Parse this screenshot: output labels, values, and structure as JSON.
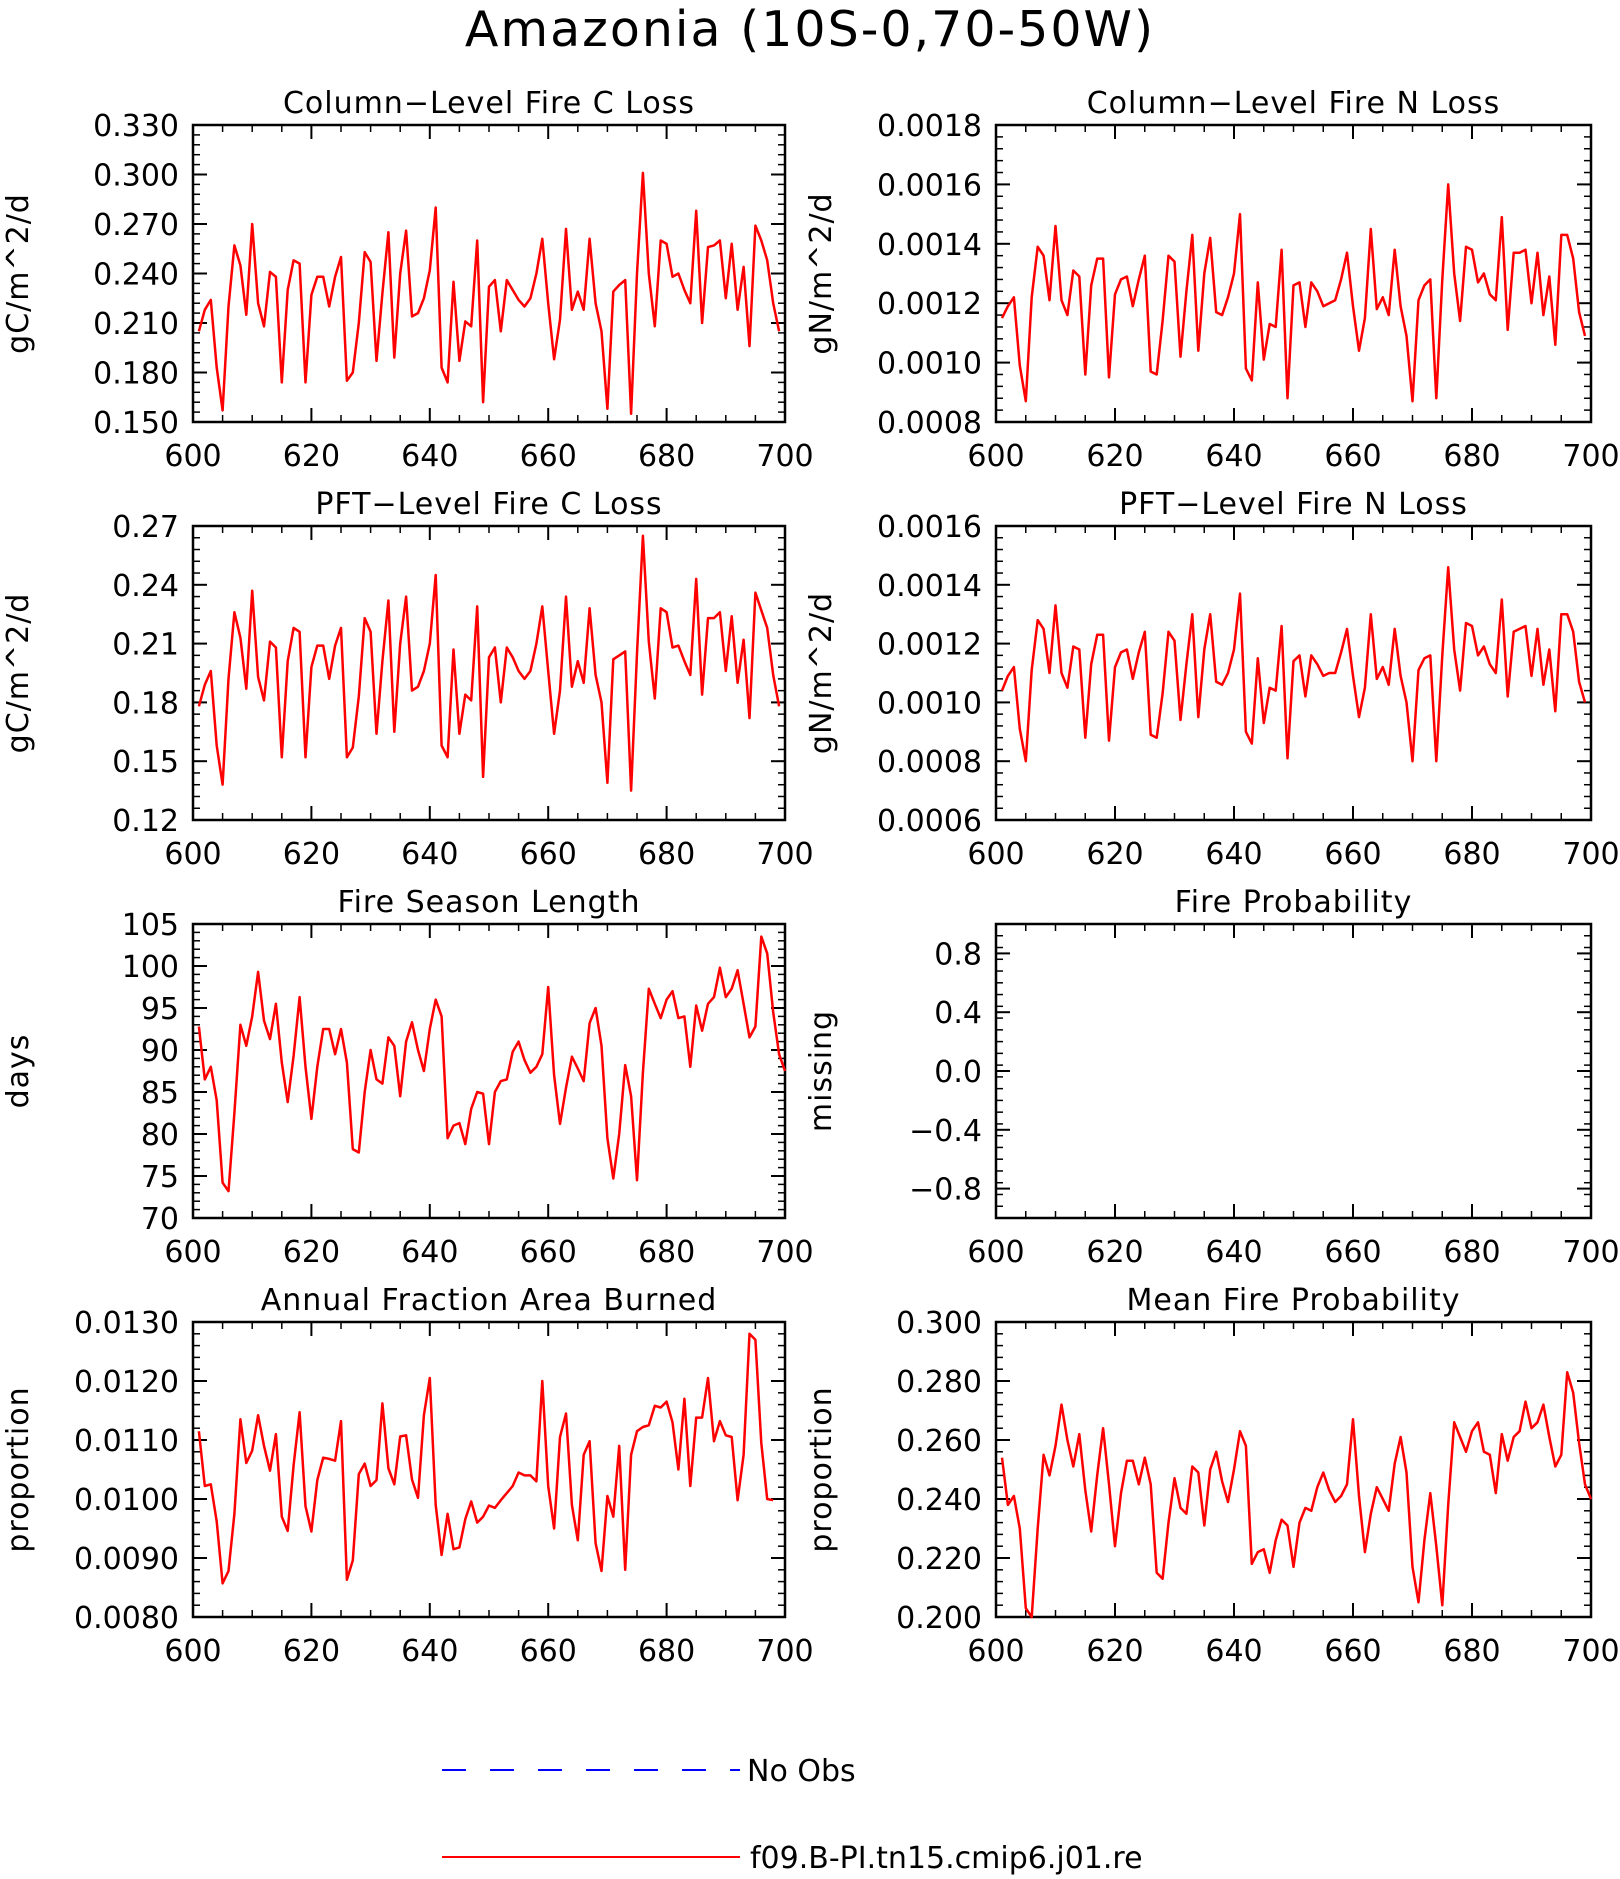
{
  "title": "Amazonia (10S-0,70-50W)",
  "series_color": "#ff0000",
  "obs_color": "#0000ff",
  "legend": {
    "obs_label": "No Obs",
    "model_label": "f09.B-PI.tn15.cmip6.j01.re"
  },
  "chart_data": [
    {
      "id": "col-c",
      "type": "line",
      "title": "Column-Level Fire C Loss",
      "ylabel": "gC/m^2/d",
      "xlim": [
        600,
        700
      ],
      "ylim": [
        0.15,
        0.33
      ],
      "xticks": [
        600,
        620,
        640,
        660,
        680,
        700
      ],
      "yticks": [
        0.15,
        0.18,
        0.21,
        0.24,
        0.27,
        0.3,
        0.33
      ],
      "ytick_labels": [
        "0.150",
        "0.180",
        "0.210",
        "0.240",
        "0.270",
        "0.300",
        "0.330"
      ],
      "x_start": 601,
      "series": [
        {
          "name": "f09.B-PI.tn15.cmip6.j01.re",
          "values": [
            0.205,
            0.218,
            0.224,
            0.183,
            0.157,
            0.22,
            0.257,
            0.245,
            0.215,
            0.27,
            0.222,
            0.208,
            0.241,
            0.238,
            0.174,
            0.23,
            0.248,
            0.246,
            0.174,
            0.227,
            0.238,
            0.238,
            0.22,
            0.238,
            0.25,
            0.175,
            0.18,
            0.21,
            0.253,
            0.247,
            0.187,
            0.228,
            0.265,
            0.189,
            0.24,
            0.266,
            0.214,
            0.216,
            0.225,
            0.242,
            0.28,
            0.183,
            0.174,
            0.235,
            0.187,
            0.211,
            0.208,
            0.26,
            0.162,
            0.232,
            0.236,
            0.205,
            0.236,
            0.23,
            0.224,
            0.22,
            0.225,
            0.24,
            0.261,
            0.222,
            0.188,
            0.212,
            0.267,
            0.218,
            0.229,
            0.218,
            0.261,
            0.222,
            0.205,
            0.158,
            0.229,
            0.233,
            0.236,
            0.155,
            0.24,
            0.301,
            0.24,
            0.208,
            0.26,
            0.258,
            0.238,
            0.24,
            0.23,
            0.222,
            0.278,
            0.21,
            0.256,
            0.257,
            0.26,
            0.225,
            0.258,
            0.218,
            0.244,
            0.196,
            0.269,
            0.26,
            0.248,
            0.222,
            0.205
          ]
        }
      ]
    },
    {
      "id": "col-n",
      "type": "line",
      "title": "Column-Level Fire N Loss",
      "ylabel": "gN/m^2/d",
      "xlim": [
        600,
        700
      ],
      "ylim": [
        0.0008,
        0.0018
      ],
      "xticks": [
        600,
        620,
        640,
        660,
        680,
        700
      ],
      "yticks": [
        0.0008,
        0.001,
        0.0012,
        0.0014,
        0.0016,
        0.0018
      ],
      "ytick_labels": [
        "0.0008",
        "0.0010",
        "0.0012",
        "0.0014",
        "0.0016",
        "0.0018"
      ],
      "x_start": 601,
      "series": [
        {
          "name": "f09.B-PI.tn15.cmip6.j01.re",
          "values": [
            0.00115,
            0.00119,
            0.00122,
            0.00099,
            0.00087,
            0.00122,
            0.00139,
            0.00136,
            0.00121,
            0.00146,
            0.00121,
            0.00116,
            0.00131,
            0.00129,
            0.00096,
            0.00126,
            0.00135,
            0.00135,
            0.00095,
            0.00123,
            0.00128,
            0.00129,
            0.00119,
            0.00128,
            0.00136,
            0.00097,
            0.00096,
            0.00114,
            0.00136,
            0.00134,
            0.00102,
            0.00124,
            0.00143,
            0.00104,
            0.0013,
            0.00142,
            0.00117,
            0.00116,
            0.00122,
            0.0013,
            0.0015,
            0.00098,
            0.00094,
            0.00127,
            0.00101,
            0.00113,
            0.00112,
            0.00138,
            0.00088,
            0.00126,
            0.00127,
            0.00112,
            0.00127,
            0.00124,
            0.00119,
            0.0012,
            0.00121,
            0.00128,
            0.00137,
            0.00119,
            0.00104,
            0.00115,
            0.00145,
            0.00118,
            0.00122,
            0.00116,
            0.00138,
            0.00119,
            0.00109,
            0.00087,
            0.00121,
            0.00126,
            0.00128,
            0.00088,
            0.00128,
            0.0016,
            0.0013,
            0.00114,
            0.00139,
            0.00138,
            0.00127,
            0.0013,
            0.00123,
            0.00121,
            0.00149,
            0.00111,
            0.00137,
            0.00137,
            0.00138,
            0.0012,
            0.00137,
            0.00116,
            0.00129,
            0.00106,
            0.00143,
            0.00143,
            0.00135,
            0.00117,
            0.00109
          ]
        }
      ]
    },
    {
      "id": "pft-c",
      "type": "line",
      "title": "PFT-Level Fire C Loss",
      "ylabel": "gC/m^2/d",
      "xlim": [
        600,
        700
      ],
      "ylim": [
        0.12,
        0.27
      ],
      "xticks": [
        600,
        620,
        640,
        660,
        680,
        700
      ],
      "yticks": [
        0.12,
        0.15,
        0.18,
        0.21,
        0.24,
        0.27
      ],
      "ytick_labels": [
        "0.12",
        "0.15",
        "0.18",
        "0.21",
        "0.24",
        "0.27"
      ],
      "x_start": 601,
      "series": [
        {
          "name": "f09.B-PI.tn15.cmip6.j01.re",
          "values": [
            0.178,
            0.189,
            0.196,
            0.158,
            0.138,
            0.192,
            0.226,
            0.213,
            0.187,
            0.237,
            0.193,
            0.181,
            0.211,
            0.208,
            0.152,
            0.201,
            0.218,
            0.216,
            0.152,
            0.198,
            0.209,
            0.209,
            0.192,
            0.209,
            0.218,
            0.152,
            0.157,
            0.183,
            0.223,
            0.216,
            0.164,
            0.201,
            0.232,
            0.165,
            0.21,
            0.234,
            0.186,
            0.188,
            0.196,
            0.21,
            0.245,
            0.158,
            0.152,
            0.207,
            0.164,
            0.184,
            0.181,
            0.229,
            0.142,
            0.203,
            0.208,
            0.18,
            0.208,
            0.203,
            0.196,
            0.192,
            0.196,
            0.21,
            0.229,
            0.196,
            0.164,
            0.186,
            0.234,
            0.188,
            0.201,
            0.19,
            0.228,
            0.194,
            0.18,
            0.139,
            0.202,
            0.204,
            0.206,
            0.135,
            0.205,
            0.265,
            0.211,
            0.182,
            0.228,
            0.226,
            0.208,
            0.209,
            0.201,
            0.194,
            0.243,
            0.184,
            0.223,
            0.223,
            0.226,
            0.196,
            0.224,
            0.19,
            0.212,
            0.172,
            0.236,
            0.227,
            0.218,
            0.194,
            0.178
          ]
        }
      ]
    },
    {
      "id": "pft-n",
      "type": "line",
      "title": "PFT-Level Fire N Loss",
      "ylabel": "gN/m^2/d",
      "xlim": [
        600,
        700
      ],
      "ylim": [
        0.0006,
        0.0016
      ],
      "xticks": [
        600,
        620,
        640,
        660,
        680,
        700
      ],
      "yticks": [
        0.0006,
        0.0008,
        0.001,
        0.0012,
        0.0014,
        0.0016
      ],
      "ytick_labels": [
        "0.0006",
        "0.0008",
        "0.0010",
        "0.0012",
        "0.0014",
        "0.0016"
      ],
      "x_start": 601,
      "series": [
        {
          "name": "f09.B-PI.tn15.cmip6.j01.re",
          "values": [
            0.00104,
            0.00109,
            0.00112,
            0.00091,
            0.0008,
            0.00111,
            0.00128,
            0.00125,
            0.0011,
            0.00133,
            0.0011,
            0.00105,
            0.00119,
            0.00118,
            0.00088,
            0.00113,
            0.00123,
            0.00123,
            0.00087,
            0.00112,
            0.00117,
            0.00118,
            0.00108,
            0.00117,
            0.00124,
            0.00089,
            0.00088,
            0.00103,
            0.00124,
            0.00121,
            0.00094,
            0.00113,
            0.0013,
            0.00095,
            0.00118,
            0.0013,
            0.00107,
            0.00106,
            0.0011,
            0.00118,
            0.00137,
            0.0009,
            0.00086,
            0.00115,
            0.00093,
            0.00105,
            0.00104,
            0.00126,
            0.00081,
            0.00114,
            0.00116,
            0.00102,
            0.00116,
            0.00113,
            0.00109,
            0.0011,
            0.0011,
            0.00117,
            0.00125,
            0.00109,
            0.00095,
            0.00105,
            0.0013,
            0.00108,
            0.00112,
            0.00106,
            0.00125,
            0.00109,
            0.001,
            0.0008,
            0.00111,
            0.00115,
            0.00116,
            0.0008,
            0.00116,
            0.00146,
            0.00118,
            0.00104,
            0.00127,
            0.00126,
            0.00116,
            0.00119,
            0.00113,
            0.0011,
            0.00135,
            0.00102,
            0.00124,
            0.00125,
            0.00126,
            0.00109,
            0.00125,
            0.00106,
            0.00118,
            0.00097,
            0.0013,
            0.0013,
            0.00124,
            0.00107,
            0.001
          ]
        }
      ]
    },
    {
      "id": "season",
      "type": "line",
      "title": "Fire Season Length",
      "ylabel": "days",
      "xlim": [
        600,
        700
      ],
      "ylim": [
        70,
        105
      ],
      "xticks": [
        600,
        620,
        640,
        660,
        680,
        700
      ],
      "yticks": [
        70,
        75,
        80,
        85,
        90,
        95,
        100,
        105
      ],
      "ytick_labels": [
        "70",
        "75",
        "80",
        "85",
        "90",
        "95",
        "100",
        "105"
      ],
      "x_start": 601,
      "series": [
        {
          "name": "f09.B-PI.tn15.cmip6.j01.re",
          "values": [
            92.8,
            86.5,
            88.0,
            84.0,
            74.2,
            73.2,
            82.5,
            93.0,
            90.5,
            94.0,
            99.3,
            93.5,
            91.3,
            95.5,
            88.5,
            83.8,
            89.3,
            96.3,
            88.0,
            81.8,
            88.0,
            92.5,
            92.5,
            89.5,
            92.5,
            88.5,
            78.2,
            77.8,
            85.0,
            90.0,
            86.5,
            86.0,
            91.5,
            90.5,
            84.5,
            91.0,
            93.3,
            90.0,
            87.5,
            92.5,
            96.0,
            94.0,
            79.5,
            81.0,
            81.3,
            78.8,
            83.0,
            85.0,
            84.8,
            78.8,
            85.0,
            86.3,
            86.5,
            89.8,
            91.0,
            88.8,
            87.3,
            88.0,
            89.5,
            97.5,
            87.0,
            81.2,
            85.5,
            89.2,
            87.8,
            86.3,
            93.2,
            95.0,
            90.5,
            79.5,
            74.7,
            80.0,
            88.2,
            84.5,
            74.5,
            87.3,
            97.3,
            95.5,
            93.8,
            96.0,
            97.0,
            93.8,
            94.0,
            88.0,
            95.3,
            92.3,
            95.5,
            96.3,
            99.8,
            96.3,
            97.3,
            99.5,
            95.5,
            91.5,
            92.8,
            103.5,
            101.5,
            94.5,
            89.5,
            87.5
          ]
        }
      ]
    },
    {
      "id": "prob",
      "type": "line",
      "title": "Fire Probability",
      "ylabel": "missing",
      "xlim": [
        600,
        700
      ],
      "ylim": [
        -1.0,
        1.0
      ],
      "xticks": [
        600,
        620,
        640,
        660,
        680,
        700
      ],
      "yticks": [
        -0.8,
        -0.4,
        0.0,
        0.4,
        0.8
      ],
      "ytick_labels": [
        "-0.8",
        "-0.4",
        "0.0",
        "0.4",
        "0.8"
      ],
      "x_start": 601,
      "series": []
    },
    {
      "id": "area",
      "type": "line",
      "title": "Annual Fraction Area Burned",
      "ylabel": "proportion",
      "xlim": [
        600,
        700
      ],
      "ylim": [
        0.008,
        0.013
      ],
      "xticks": [
        600,
        620,
        640,
        660,
        680,
        700
      ],
      "yticks": [
        0.008,
        0.009,
        0.01,
        0.011,
        0.012,
        0.013
      ],
      "ytick_labels": [
        "0.0080",
        "0.0090",
        "0.0100",
        "0.0110",
        "0.0120",
        "0.0130"
      ],
      "x_start": 601,
      "series": [
        {
          "name": "f09.B-PI.tn15.cmip6.j01.re",
          "values": [
            0.01115,
            0.01022,
            0.01025,
            0.00962,
            0.00857,
            0.00878,
            0.00975,
            0.01135,
            0.01061,
            0.01082,
            0.01142,
            0.0109,
            0.01048,
            0.0111,
            0.0097,
            0.00946,
            0.01057,
            0.01147,
            0.00988,
            0.00945,
            0.01032,
            0.0107,
            0.01068,
            0.01065,
            0.01132,
            0.00863,
            0.00896,
            0.01042,
            0.0106,
            0.01022,
            0.01032,
            0.01162,
            0.01052,
            0.01025,
            0.01106,
            0.01108,
            0.01033,
            0.01002,
            0.01142,
            0.01205,
            0.0099,
            0.00905,
            0.00975,
            0.00915,
            0.00918,
            0.00966,
            0.00996,
            0.0096,
            0.0097,
            0.00989,
            0.00985,
            0.00998,
            0.0101,
            0.01022,
            0.01045,
            0.0104,
            0.0104,
            0.0103,
            0.012,
            0.01022,
            0.0095,
            0.01105,
            0.01145,
            0.0099,
            0.0093,
            0.01075,
            0.01098,
            0.00925,
            0.00878,
            0.01005,
            0.0097,
            0.0109,
            0.0088,
            0.01075,
            0.01115,
            0.01122,
            0.01125,
            0.01158,
            0.01155,
            0.01165,
            0.0113,
            0.0105,
            0.0117,
            0.01022,
            0.01138,
            0.01138,
            0.01205,
            0.01098,
            0.01132,
            0.01108,
            0.01105,
            0.00998,
            0.01075,
            0.0128,
            0.0127,
            0.01095,
            0.01,
            0.00998
          ]
        }
      ]
    },
    {
      "id": "meanprob",
      "type": "line",
      "title": "Mean Fire Probability",
      "ylabel": "proportion",
      "xlim": [
        600,
        700
      ],
      "ylim": [
        0.2,
        0.3
      ],
      "xticks": [
        600,
        620,
        640,
        660,
        680,
        700
      ],
      "yticks": [
        0.2,
        0.22,
        0.24,
        0.26,
        0.28,
        0.3
      ],
      "ytick_labels": [
        "0.200",
        "0.220",
        "0.240",
        "0.260",
        "0.280",
        "0.300"
      ],
      "x_start": 601,
      "series": [
        {
          "name": "f09.B-PI.tn15.cmip6.j01.re",
          "values": [
            0.254,
            0.238,
            0.241,
            0.23,
            0.203,
            0.2,
            0.23,
            0.255,
            0.248,
            0.258,
            0.272,
            0.26,
            0.251,
            0.262,
            0.243,
            0.229,
            0.248,
            0.264,
            0.245,
            0.224,
            0.242,
            0.253,
            0.253,
            0.245,
            0.254,
            0.245,
            0.215,
            0.213,
            0.232,
            0.247,
            0.237,
            0.235,
            0.251,
            0.249,
            0.231,
            0.25,
            0.256,
            0.246,
            0.239,
            0.25,
            0.263,
            0.258,
            0.218,
            0.222,
            0.223,
            0.215,
            0.226,
            0.233,
            0.231,
            0.217,
            0.232,
            0.237,
            0.236,
            0.244,
            0.249,
            0.243,
            0.239,
            0.241,
            0.245,
            0.267,
            0.241,
            0.222,
            0.235,
            0.244,
            0.24,
            0.236,
            0.252,
            0.261,
            0.249,
            0.217,
            0.205,
            0.226,
            0.242,
            0.224,
            0.204,
            0.238,
            0.266,
            0.261,
            0.256,
            0.263,
            0.266,
            0.256,
            0.255,
            0.242,
            0.262,
            0.253,
            0.261,
            0.263,
            0.273,
            0.264,
            0.266,
            0.272,
            0.261,
            0.251,
            0.255,
            0.283,
            0.276,
            0.259,
            0.245,
            0.24
          ]
        }
      ]
    }
  ]
}
